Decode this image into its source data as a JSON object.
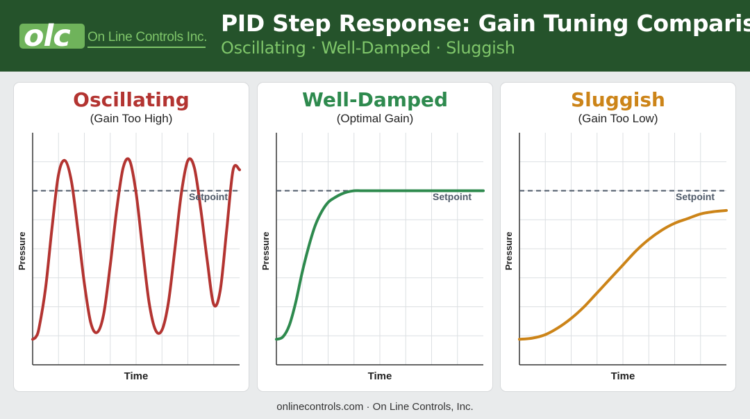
{
  "header": {
    "logo_letters": "olc",
    "logo_name": "On Line Controls Inc.",
    "title": "PID Step Response: Gain Tuning Comparison",
    "subtitle": "Oscillating · Well-Damped · Sluggish"
  },
  "footer": "onlinecontrols.com · On Line Controls, Inc.",
  "colors": {
    "header_bg": "#25532b",
    "accent_green": "#7fc66a",
    "oscillating": "#b33431",
    "well_damped": "#2e8a4e",
    "sluggish": "#cc8418",
    "setpoint_line": "#4e5968"
  },
  "chart_data": [
    {
      "type": "line",
      "title": "Oscillating",
      "subtitle": "(Gain Too High)",
      "xlabel": "Time",
      "ylabel": "Pressure",
      "setpoint_label": "Setpoint",
      "setpoint": 0.75,
      "xlim": [
        0,
        8
      ],
      "ylim": [
        0,
        1
      ],
      "grid": true,
      "series": [
        {
          "color": "#b33431",
          "x": [
            0,
            0.125,
            0.25,
            0.5,
            0.75,
            1.0,
            1.25,
            1.5,
            1.75,
            2.0,
            2.25,
            2.5,
            2.75,
            3.0,
            3.25,
            3.5,
            3.75,
            4.0,
            4.25,
            4.5,
            4.75,
            5.0,
            5.25,
            5.5,
            5.75,
            6.0,
            6.25,
            6.5,
            6.75,
            7.0,
            7.25,
            7.5,
            7.75,
            8.0
          ],
          "y": [
            0.11,
            0.12,
            0.16,
            0.33,
            0.59,
            0.82,
            0.88,
            0.79,
            0.58,
            0.35,
            0.18,
            0.14,
            0.22,
            0.43,
            0.67,
            0.85,
            0.88,
            0.74,
            0.5,
            0.27,
            0.15,
            0.15,
            0.27,
            0.5,
            0.74,
            0.88,
            0.85,
            0.67,
            0.45,
            0.26,
            0.32,
            0.58,
            0.84,
            0.84
          ]
        }
      ]
    },
    {
      "type": "line",
      "title": "Well-Damped",
      "subtitle": "(Optimal Gain)",
      "xlabel": "Time",
      "ylabel": "Pressure",
      "setpoint_label": "Setpoint",
      "setpoint": 0.75,
      "xlim": [
        0,
        8
      ],
      "ylim": [
        0,
        1
      ],
      "grid": true,
      "series": [
        {
          "color": "#2e8a4e",
          "x": [
            0,
            0.25,
            0.5,
            0.75,
            1.0,
            1.25,
            1.5,
            1.75,
            2.0,
            2.25,
            2.5,
            2.75,
            3.0,
            3.25,
            3.5,
            3.75,
            4.0,
            5.0,
            6.0,
            7.0,
            8.0
          ],
          "y": [
            0.11,
            0.12,
            0.17,
            0.27,
            0.4,
            0.51,
            0.6,
            0.66,
            0.7,
            0.72,
            0.735,
            0.745,
            0.75,
            0.75,
            0.75,
            0.75,
            0.75,
            0.75,
            0.75,
            0.75,
            0.75
          ]
        }
      ]
    },
    {
      "type": "line",
      "title": "Sluggish",
      "subtitle": "(Gain Too Low)",
      "xlabel": "Time",
      "ylabel": "Pressure",
      "setpoint_label": "Setpoint",
      "setpoint": 0.75,
      "xlim": [
        0,
        8
      ],
      "ylim": [
        0,
        1
      ],
      "grid": true,
      "series": [
        {
          "color": "#cc8418",
          "x": [
            0,
            0.5,
            1.0,
            1.5,
            2.0,
            2.5,
            3.0,
            3.5,
            4.0,
            4.5,
            5.0,
            5.5,
            6.0,
            6.5,
            7.0,
            7.5,
            8.0
          ],
          "y": [
            0.11,
            0.115,
            0.13,
            0.16,
            0.2,
            0.25,
            0.31,
            0.37,
            0.43,
            0.49,
            0.54,
            0.58,
            0.61,
            0.63,
            0.65,
            0.66,
            0.665
          ]
        }
      ]
    }
  ]
}
